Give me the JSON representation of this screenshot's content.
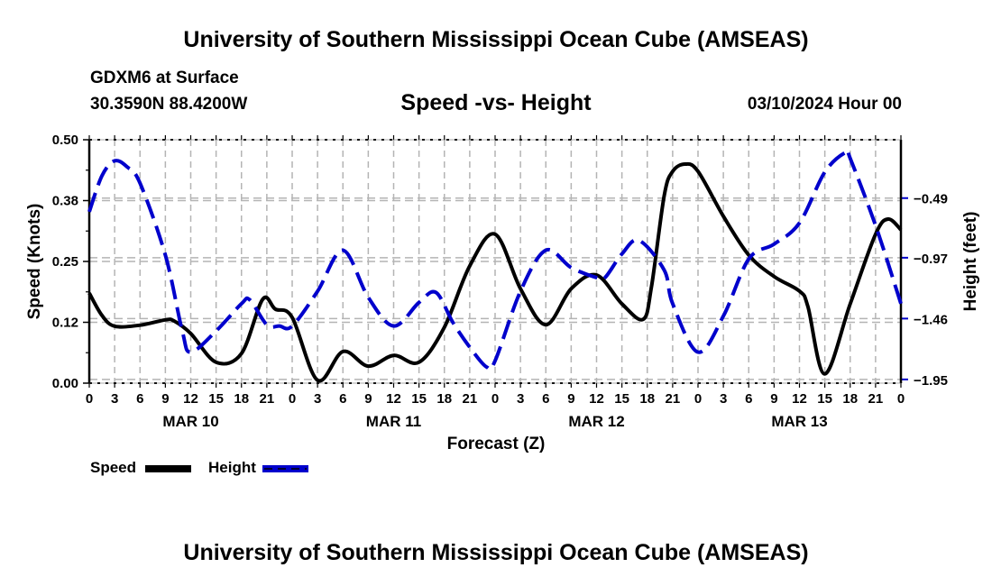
{
  "header": {
    "main_title": "University of Southern Mississippi Ocean Cube (AMSEAS)",
    "station": "GDXM6 at Surface",
    "coords": "30.3590N  88.4200W",
    "subtitle": "Speed -vs- Height",
    "datetime": "03/10/2024 Hour 00"
  },
  "footer": {
    "title": "University of Southern Mississippi Ocean Cube (AMSEAS)"
  },
  "legend": {
    "speed_label": "Speed",
    "height_label": "Height"
  },
  "colors": {
    "speed": "#000000",
    "height": "#0000cc",
    "grid": "#b4b4b4"
  },
  "chart_data": {
    "type": "line",
    "title": "Speed -vs- Height",
    "xlabel": "Forecast (Z)",
    "ylabel": "Speed (Knots)",
    "y2label": "Height (feet)",
    "x_unit": "hours since 03/10/2024 00Z",
    "xlim": [
      0,
      96
    ],
    "ylim": [
      0,
      0.5
    ],
    "y2lim": [
      -1.98,
      -0.02
    ],
    "grid": true,
    "legend_position": "bottom-left",
    "x_ticks": [
      0,
      3,
      6,
      9,
      12,
      15,
      18,
      21,
      24,
      27,
      30,
      33,
      36,
      39,
      42,
      45,
      48,
      51,
      54,
      57,
      60,
      63,
      66,
      69,
      72,
      75,
      78,
      81,
      84,
      87,
      90,
      93,
      96
    ],
    "x_tick_labels": [
      "0",
      "3",
      "6",
      "9",
      "12",
      "15",
      "18",
      "21",
      "0",
      "3",
      "6",
      "9",
      "12",
      "15",
      "18",
      "21",
      "0",
      "3",
      "6",
      "9",
      "12",
      "15",
      "18",
      "21",
      "0",
      "3",
      "6",
      "9",
      "12",
      "15",
      "18",
      "21",
      "0"
    ],
    "day_labels": [
      {
        "x": 12,
        "label": "MAR 10"
      },
      {
        "x": 36,
        "label": "MAR 11"
      },
      {
        "x": 60,
        "label": "MAR 12"
      },
      {
        "x": 84,
        "label": "MAR 13"
      }
    ],
    "y_ticks": [
      0,
      0.125,
      0.25,
      0.375,
      0.5
    ],
    "y_tick_labels": [
      "0.00",
      "0.12",
      "0.25",
      "0.38",
      "0.50"
    ],
    "y2_ticks": [
      -1.95,
      -1.46,
      -0.97,
      -0.49
    ],
    "y2_tick_labels": [
      "−1.95",
      "−1.46",
      "−0.97",
      "−0.49"
    ],
    "series": [
      {
        "name": "Speed",
        "axis": "left",
        "style": "solid",
        "x": [
          0,
          1.5,
          3,
          6,
          9,
          10,
          12,
          15,
          18,
          20.5,
          22,
          24,
          27,
          30,
          33,
          36,
          39,
          42,
          45,
          48,
          51,
          54,
          57,
          60,
          63,
          65.5,
          66.5,
          68,
          69,
          70.5,
          72,
          75,
          78,
          81,
          84,
          85,
          87,
          90,
          93,
          94.5,
          96
        ],
        "values": [
          0.185,
          0.139,
          0.117,
          0.119,
          0.13,
          0.128,
          0.102,
          0.043,
          0.061,
          0.172,
          0.152,
          0.135,
          0.006,
          0.065,
          0.035,
          0.057,
          0.043,
          0.115,
          0.241,
          0.306,
          0.194,
          0.12,
          0.194,
          0.222,
          0.163,
          0.131,
          0.198,
          0.385,
          0.435,
          0.45,
          0.435,
          0.343,
          0.263,
          0.219,
          0.189,
          0.157,
          0.019,
          0.163,
          0.306,
          0.337,
          0.315
        ]
      },
      {
        "name": "Height",
        "axis": "right",
        "style": "dashed",
        "x": [
          0,
          1.5,
          3,
          4.5,
          6,
          9,
          11,
          12,
          15,
          18,
          19,
          21,
          22.5,
          24,
          27,
          30,
          33,
          36,
          39,
          41,
          43,
          45,
          47,
          48,
          51,
          54,
          57,
          60,
          61,
          63,
          65,
          68,
          69,
          72,
          75,
          78,
          81,
          84,
          87,
          89.5,
          90,
          93,
          96
        ],
        "values": [
          -0.6,
          -0.31,
          -0.19,
          -0.24,
          -0.37,
          -0.95,
          -1.56,
          -1.73,
          -1.56,
          -1.34,
          -1.31,
          -1.51,
          -1.52,
          -1.52,
          -1.24,
          -0.91,
          -1.29,
          -1.52,
          -1.33,
          -1.25,
          -1.49,
          -1.69,
          -1.85,
          -1.8,
          -1.24,
          -0.91,
          -1.05,
          -1.13,
          -1.13,
          -0.94,
          -0.83,
          -1.07,
          -1.34,
          -1.73,
          -1.44,
          -0.98,
          -0.86,
          -0.69,
          -0.28,
          -0.12,
          -0.17,
          -0.71,
          -1.34
        ]
      }
    ]
  }
}
